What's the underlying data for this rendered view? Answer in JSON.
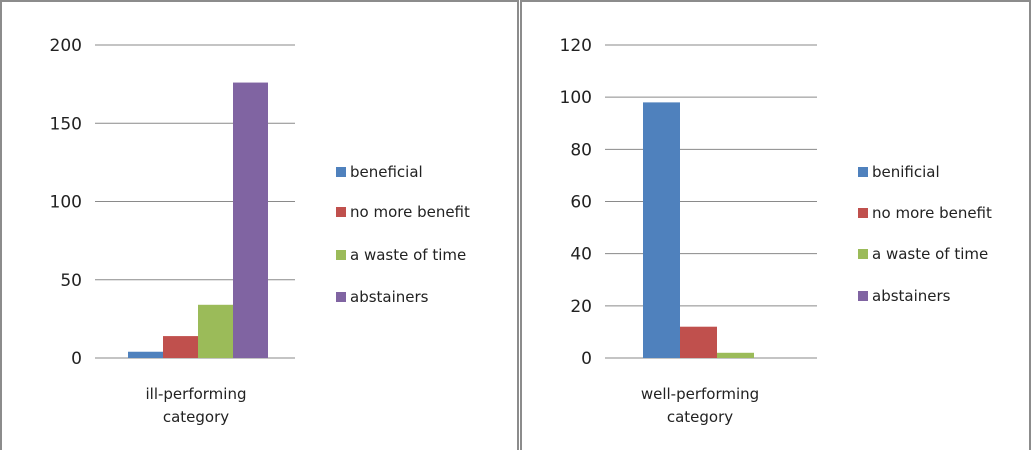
{
  "chart_data": [
    {
      "type": "bar",
      "categories": [
        "ill-performing category"
      ],
      "category_lines": [
        "ill-performing",
        "category"
      ],
      "series": [
        {
          "name": "beneficial",
          "color": "#4f81bd",
          "values": [
            4
          ]
        },
        {
          "name": "no more benefit",
          "color": "#c0504d",
          "values": [
            14
          ]
        },
        {
          "name": "a waste of time",
          "color": "#9bbb59",
          "values": [
            34
          ]
        },
        {
          "name": "abstainers",
          "color": "#8064a2",
          "values": [
            176
          ]
        }
      ],
      "yticks": [
        0,
        50,
        100,
        150,
        200
      ],
      "ylim": [
        0,
        200
      ],
      "grid": true,
      "legend_position": "right"
    },
    {
      "type": "bar",
      "categories": [
        "well-performing category"
      ],
      "category_lines": [
        "well-performing",
        "category"
      ],
      "series": [
        {
          "name": "benificial",
          "color": "#4f81bd",
          "values": [
            98
          ]
        },
        {
          "name": "no more benefit",
          "color": "#c0504d",
          "values": [
            12
          ]
        },
        {
          "name": "a waste of time",
          "color": "#9bbb59",
          "values": [
            2
          ]
        },
        {
          "name": "abstainers",
          "color": "#8064a2",
          "values": [
            0
          ]
        }
      ],
      "yticks": [
        0,
        20,
        40,
        60,
        80,
        100,
        120
      ],
      "ylim": [
        0,
        120
      ],
      "grid": true,
      "legend_position": "right"
    }
  ]
}
